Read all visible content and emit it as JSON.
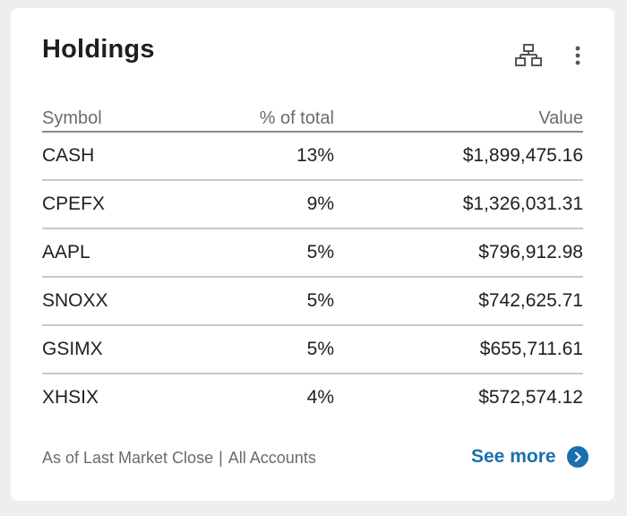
{
  "card": {
    "title": "Holdings",
    "icons": {
      "hierarchy": "hierarchy-icon",
      "more": "more-vertical-icon",
      "see_more": "chevron-right-circle-icon"
    }
  },
  "table": {
    "headers": {
      "symbol": "Symbol",
      "percent": "% of total",
      "value": "Value"
    },
    "rows": [
      {
        "symbol": "CASH",
        "percent": "13%",
        "value": "$1,899,475.16"
      },
      {
        "symbol": "CPEFX",
        "percent": "9%",
        "value": "$1,326,031.31"
      },
      {
        "symbol": "AAPL",
        "percent": "5%",
        "value": "$796,912.98"
      },
      {
        "symbol": "SNOXX",
        "percent": "5%",
        "value": "$742,625.71"
      },
      {
        "symbol": "GSIMX",
        "percent": "5%",
        "value": "$655,711.61"
      },
      {
        "symbol": "XHSIX",
        "percent": "4%",
        "value": "$572,574.12"
      }
    ]
  },
  "footer": {
    "as_of": "As of Last Market Close",
    "separator": "|",
    "accounts": "All Accounts",
    "see_more": "See more"
  },
  "colors": {
    "accent": "#1a6fae",
    "text": "#1f1f1f",
    "muted": "#6b6b6b",
    "background": "#eeeeee",
    "card": "#ffffff"
  }
}
